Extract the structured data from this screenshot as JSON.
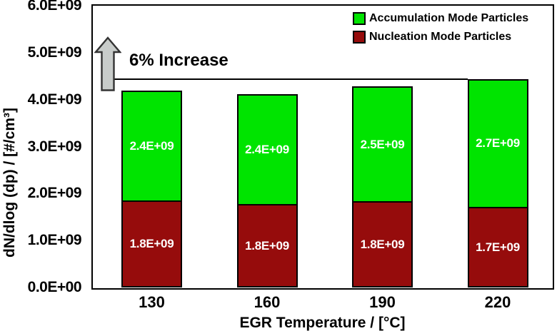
{
  "chart_data": {
    "type": "bar",
    "stacked": true,
    "xlabel": "EGR Temperature / [°C]",
    "ylabel": "dN/dlog (dp) / [#/cm³]",
    "ylim": [
      0,
      6000000000.0
    ],
    "y_ticks": [
      "0.0E+00",
      "1.0E+09",
      "2.0E+09",
      "3.0E+09",
      "4.0E+09",
      "5.0E+09",
      "6.0E+09"
    ],
    "categories": [
      "130",
      "160",
      "190",
      "220"
    ],
    "series": [
      {
        "name": "Nucleation Mode Particles",
        "color": "#960C0C",
        "values": [
          1840000000.0,
          1760000000.0,
          1820000000.0,
          1700000000.0
        ],
        "data_labels": [
          "1.8E+09",
          "1.8E+09",
          "1.8E+09",
          "1.7E+09"
        ]
      },
      {
        "name": "Accumulation Mode Particles",
        "color": "#00E400",
        "values": [
          2350000000.0,
          2360000000.0,
          2460000000.0,
          2740000000.0
        ],
        "data_labels": [
          "2.4E+09",
          "2.4E+09",
          "2.5E+09",
          "2.7E+09"
        ]
      }
    ],
    "legend": {
      "position": "top-right",
      "items": [
        {
          "label": "Accumulation Mode Particles",
          "color": "#00E400"
        },
        {
          "label": "Nucleation Mode Particles",
          "color": "#960C0C"
        }
      ]
    },
    "annotations": [
      {
        "type": "arrow-up",
        "text": "6% Increase",
        "line_y": 4440000000.0,
        "arrow_fill": "#C8CCCA",
        "arrow_stroke": "#333333"
      }
    ],
    "grid": false
  }
}
